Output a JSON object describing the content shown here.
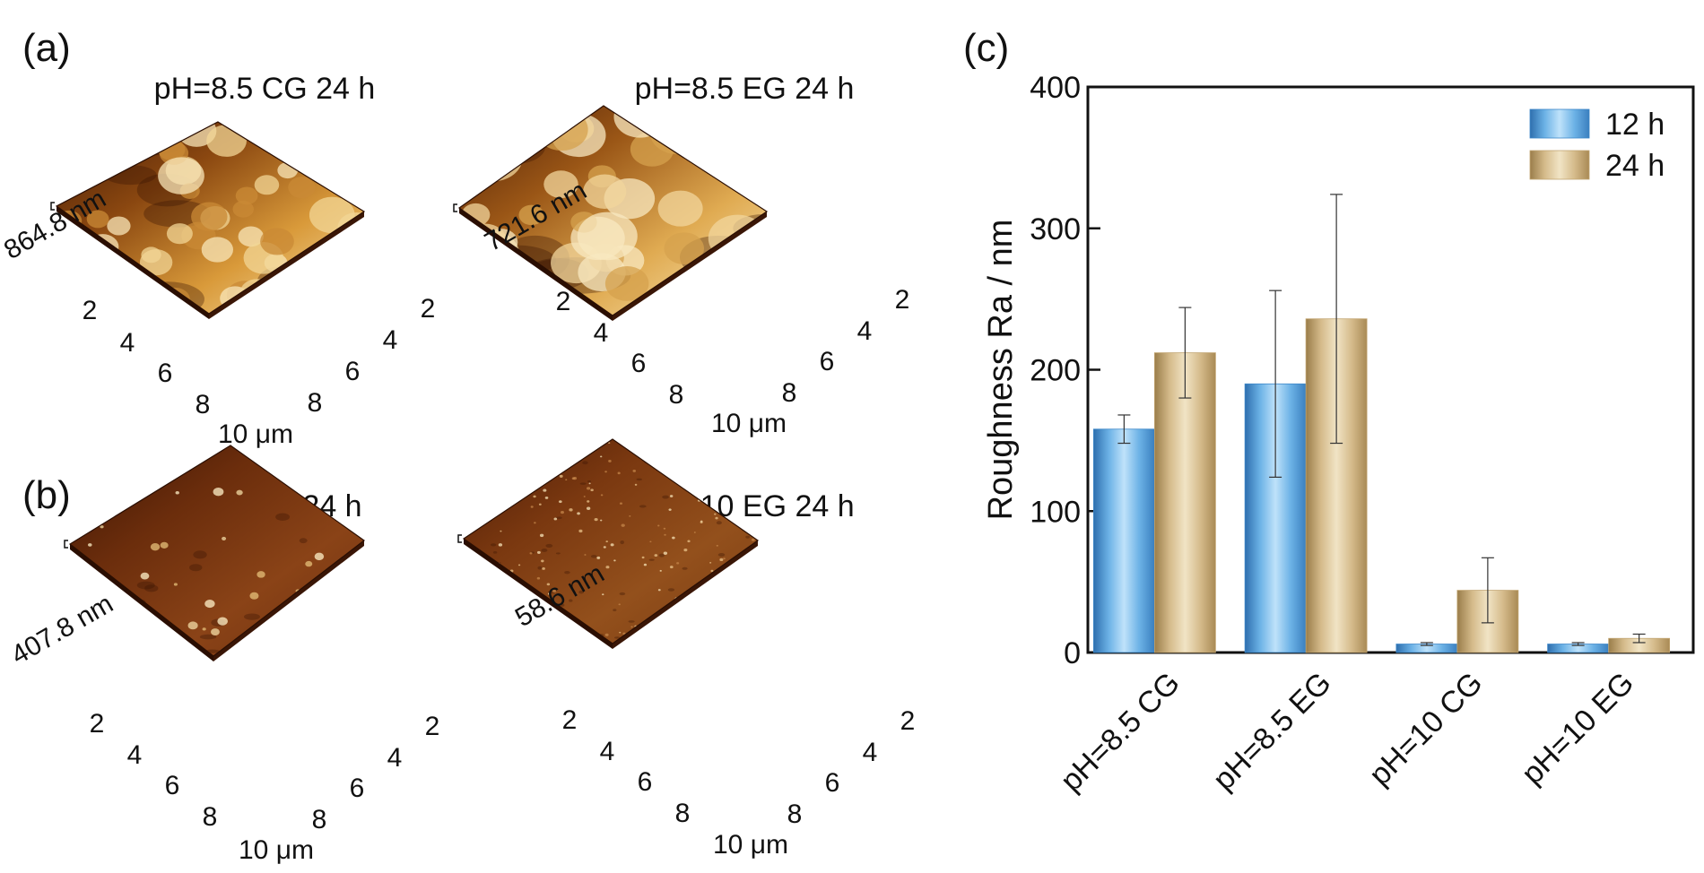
{
  "panels": {
    "a": {
      "label": "(a)",
      "afm": [
        {
          "title": "pH=8.5 CG 24 h",
          "height_label": "864.8 nm",
          "scheme": "cg85"
        },
        {
          "title": "pH=8.5 EG 24 h",
          "height_label": "721.6 nm",
          "scheme": "eg85"
        }
      ]
    },
    "b": {
      "label": "(b)",
      "afm": [
        {
          "title": "pH=10 CG 24 h",
          "height_label": "407.8 nm",
          "scheme": "cg10"
        },
        {
          "title": "pH=10 EG 24 h",
          "height_label": "58.6 nm",
          "scheme": "eg10"
        }
      ]
    },
    "c": {
      "label": "(c)"
    }
  },
  "afm_axis": {
    "ticks": [
      "2",
      "4",
      "6",
      "8"
    ],
    "unit_label": "10 μm"
  },
  "colors": {
    "bar_12h": "#3d87c9",
    "bar_24h": "#c2a571",
    "afm_dark": "#4a1c08",
    "afm_light": "#f3dba4"
  },
  "chart_data": {
    "type": "bar",
    "title": "",
    "xlabel": "",
    "ylabel": "Roughness  Ra / nm",
    "ylim": [
      0,
      400
    ],
    "yticks": [
      0,
      100,
      200,
      300,
      400
    ],
    "categories": [
      "pH=8.5 CG",
      "pH=8.5 EG",
      "pH=10 CG",
      "pH=10 EG"
    ],
    "series": [
      {
        "name": "12 h",
        "values": [
          158,
          190,
          6,
          6
        ],
        "errors": [
          10,
          66,
          1,
          1
        ]
      },
      {
        "name": "24 h",
        "values": [
          212,
          236,
          44,
          10
        ],
        "errors": [
          32,
          88,
          23,
          3
        ]
      }
    ],
    "legend_position": "top-right",
    "grid": false
  }
}
